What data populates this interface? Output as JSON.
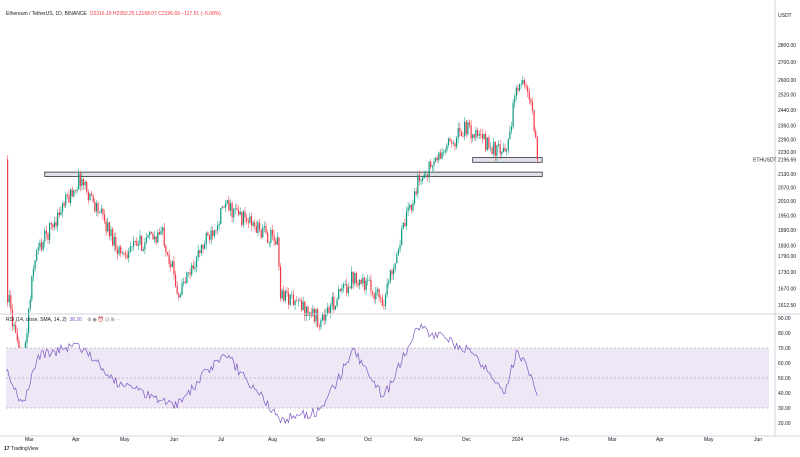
{
  "header": {
    "symbol_line": "Ethereum / TetherUS, 1D, BINANCE",
    "ohlc": "O2316.19 H2352.25 L2168.07 C2196.69 −117.51 (−5.08%)"
  },
  "price_axis": {
    "unit_label": "USDT",
    "ticks": [
      "2800.00",
      "2700.00",
      "2600.00",
      "2520.00",
      "2440.00",
      "2360.00",
      "2290.00",
      "2230.00",
      "2130.00",
      "2070.00",
      "2010.00",
      "1950.00",
      "1890.00",
      "1830.00",
      "1790.00",
      "1730.00",
      "1670.00",
      "1612.50"
    ],
    "price_tag": {
      "label": "ETHUSDT",
      "value": "2196.69"
    }
  },
  "rsi_panel": {
    "label": "RSI (14, close, SMA, 14, 2)",
    "value": "38.26",
    "toolbar_icons": [
      "settings-icon",
      "eye-icon",
      "alert-icon",
      "lock-icon",
      "chart-icon",
      "more-icon"
    ],
    "ticks": [
      "90.00",
      "80.00",
      "70.00",
      "60.00",
      "50.00",
      "40.00",
      "30.00",
      "20.00"
    ],
    "upper_band": 70,
    "middle_band": 50,
    "lower_band": 30
  },
  "time_axis": {
    "labels": [
      "Mar",
      "Apr",
      "May",
      "Jun",
      "Jul",
      "Aug",
      "Sep",
      "Oct",
      "Nov",
      "Dec",
      "2024",
      "Feb",
      "Mar",
      "Apr",
      "May",
      "Jun"
    ]
  },
  "branding": {
    "logo_text": "TradingView",
    "logo_mark": "17"
  },
  "colors": {
    "up": "#089981",
    "down": "#f23645",
    "rsi_line": "#7e57c2",
    "rsi_band_fill": "#ede7f6",
    "zone_fill": "#d1d4dc",
    "zone_border": "#131722"
  },
  "chart_data": [
    {
      "type": "candlestick",
      "title": "Ethereum / TetherUS, 1D, BINANCE",
      "ylabel": "USDT",
      "ylim": [
        1612.5,
        2800
      ],
      "x_start": "2023-02-28",
      "y_scale": "log",
      "grid": false,
      "key_points": [
        {
          "date": "2023-03-01",
          "price": 1650
        },
        {
          "date": "2023-03-10",
          "price": 1380
        },
        {
          "date": "2023-03-18",
          "price": 1790
        },
        {
          "date": "2023-04-15",
          "price": 2110
        },
        {
          "date": "2023-05-10",
          "price": 1800
        },
        {
          "date": "2023-06-05",
          "price": 1880
        },
        {
          "date": "2023-06-15",
          "price": 1650
        },
        {
          "date": "2023-07-14",
          "price": 1990
        },
        {
          "date": "2023-08-15",
          "price": 1840
        },
        {
          "date": "2023-08-17",
          "price": 1660
        },
        {
          "date": "2023-09-11",
          "price": 1560
        },
        {
          "date": "2023-10-02",
          "price": 1720
        },
        {
          "date": "2023-10-20",
          "price": 1630
        },
        {
          "date": "2023-11-10",
          "price": 2090
        },
        {
          "date": "2023-12-09",
          "price": 2350
        },
        {
          "date": "2024-01-03",
          "price": 2210
        },
        {
          "date": "2024-01-12",
          "price": 2620
        },
        {
          "date": "2024-01-19",
          "price": 2470
        },
        {
          "date": "2024-01-23",
          "price": 2196.69
        }
      ],
      "zones": [
        {
          "from": "2023-03-24",
          "to": "2024-01-26",
          "low": 2118,
          "high": 2138
        },
        {
          "from": "2023-12-14",
          "to": "2024-01-26",
          "low": 2183,
          "high": 2205
        }
      ]
    },
    {
      "type": "line",
      "title": "RSI (14, close, SMA, 14, 2)",
      "ylim": [
        20,
        90
      ],
      "series": [
        {
          "values": [
            {
              "date": "2023-02-28",
              "y": 55
            },
            {
              "date": "2023-03-10",
              "y": 31
            },
            {
              "date": "2023-03-20",
              "y": 65
            },
            {
              "date": "2023-04-13",
              "y": 72
            },
            {
              "date": "2023-05-08",
              "y": 47
            },
            {
              "date": "2023-06-14",
              "y": 32
            },
            {
              "date": "2023-07-13",
              "y": 67
            },
            {
              "date": "2023-08-17",
              "y": 22
            },
            {
              "date": "2023-09-11",
              "y": 28
            },
            {
              "date": "2023-10-01",
              "y": 68
            },
            {
              "date": "2023-10-20",
              "y": 37
            },
            {
              "date": "2023-11-10",
              "y": 84
            },
            {
              "date": "2023-12-09",
              "y": 70
            },
            {
              "date": "2024-01-03",
              "y": 42
            },
            {
              "date": "2024-01-11",
              "y": 70
            },
            {
              "date": "2024-01-23",
              "y": 38.26
            }
          ]
        }
      ],
      "bands": [
        70,
        50,
        30
      ]
    }
  ]
}
